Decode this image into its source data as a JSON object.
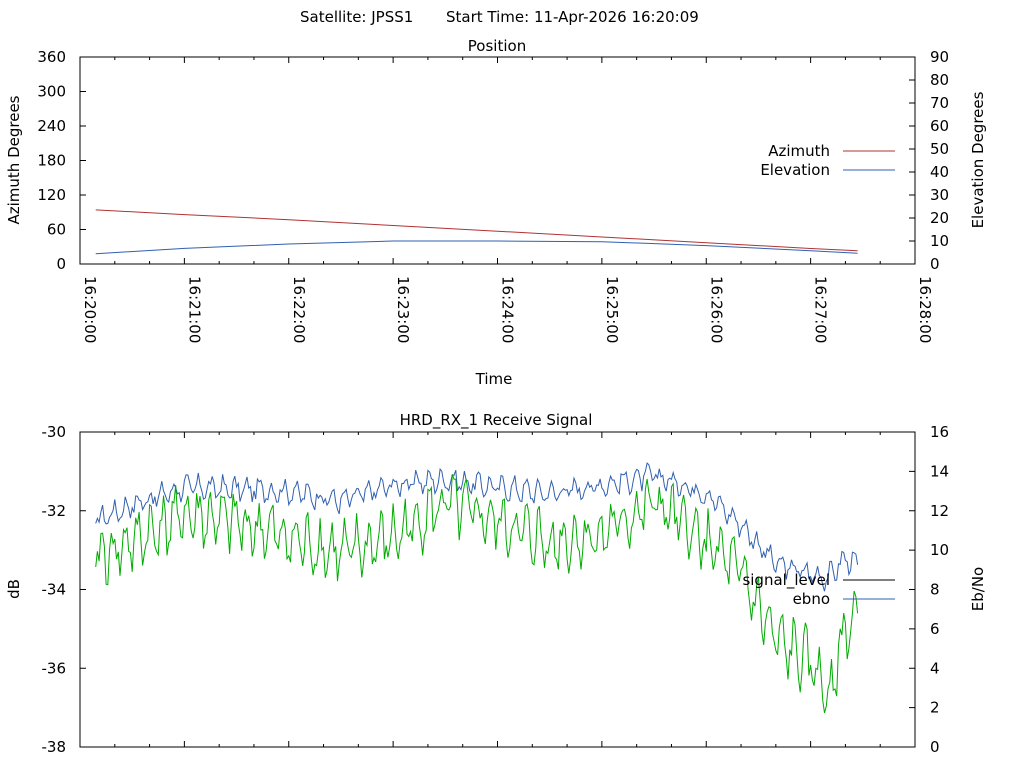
{
  "header": {
    "satellite": "Satellite: JPSS1",
    "start_time": "Start Time: 11-Apr-2026 16:20:09"
  },
  "colors": {
    "azimuth": "#b03232",
    "elevation": "#3060b0",
    "signal_level": "#00aa00",
    "ebno": "#3060b0",
    "signal_level_legend": "#000000"
  },
  "chart_data": [
    {
      "type": "line",
      "title": "Position",
      "xlabel": "Time",
      "ylabel": "Azimuth Degrees",
      "y2label": "Elevation Degrees",
      "x_ticks": [
        "16:20:00",
        "16:21:00",
        "16:22:00",
        "16:23:00",
        "16:24:00",
        "16:25:00",
        "16:26:00",
        "16:27:00",
        "16:28:00"
      ],
      "xlim": [
        "16:20:00",
        "16:28:00"
      ],
      "ylim": [
        0,
        360
      ],
      "y_ticks": [
        "0",
        "60",
        "120",
        "180",
        "240",
        "300",
        "360"
      ],
      "y2lim": [
        0,
        90
      ],
      "y2_ticks": [
        "0",
        "10",
        "20",
        "30",
        "40",
        "50",
        "60",
        "70",
        "80",
        "90"
      ],
      "legend_position": "right",
      "series": [
        {
          "name": "Azimuth",
          "axis": "left",
          "x": [
            "16:20:09",
            "16:21:00",
            "16:22:00",
            "16:23:00",
            "16:24:00",
            "16:25:00",
            "16:26:00",
            "16:27:00",
            "16:27:27"
          ],
          "values": [
            94,
            86,
            77,
            67,
            57,
            47,
            37,
            27,
            23
          ]
        },
        {
          "name": "Elevation",
          "axis": "right",
          "x": [
            "16:20:09",
            "16:21:00",
            "16:22:00",
            "16:23:00",
            "16:24:00",
            "16:25:00",
            "16:26:00",
            "16:27:00",
            "16:27:27"
          ],
          "values": [
            4.5,
            6.8,
            8.7,
            10.0,
            10.0,
            9.7,
            8.0,
            5.8,
            4.7
          ]
        }
      ]
    },
    {
      "type": "line",
      "title": "HRD_RX_1 Receive Signal",
      "ylabel": "dB",
      "y2label": "Eb/No",
      "ylim": [
        -38,
        -30
      ],
      "y_ticks": [
        "-30",
        "-32",
        "-34",
        "-36",
        "-38"
      ],
      "y2lim": [
        0,
        16
      ],
      "y2_ticks": [
        "0",
        "2",
        "4",
        "6",
        "8",
        "10",
        "12",
        "14",
        "16"
      ],
      "xlim": [
        "16:20:00",
        "16:28:00"
      ],
      "legend_position": "right",
      "series": [
        {
          "name": "signal_level",
          "axis": "left",
          "x": [
            "16:20:09",
            "16:20:30",
            "16:21:00",
            "16:21:30",
            "16:22:00",
            "16:22:30",
            "16:23:00",
            "16:23:30",
            "16:24:00",
            "16:24:30",
            "16:25:00",
            "16:25:30",
            "16:26:00",
            "16:26:20",
            "16:26:40",
            "16:27:00",
            "16:27:10",
            "16:27:20",
            "16:27:27"
          ],
          "values": [
            -33.2,
            -32.8,
            -32.1,
            -32.3,
            -32.7,
            -33.1,
            -32.7,
            -31.8,
            -32.3,
            -32.8,
            -32.6,
            -31.8,
            -32.8,
            -33.6,
            -35.3,
            -35.9,
            -36.6,
            -35.0,
            -34.7
          ]
        },
        {
          "name": "ebno",
          "axis": "right",
          "x": [
            "16:20:09",
            "16:20:30",
            "16:21:00",
            "16:21:30",
            "16:22:00",
            "16:22:30",
            "16:23:00",
            "16:23:30",
            "16:24:00",
            "16:24:30",
            "16:25:00",
            "16:25:30",
            "16:26:00",
            "16:26:20",
            "16:26:40",
            "16:27:00",
            "16:27:10",
            "16:27:20",
            "16:27:27"
          ],
          "values": [
            11.5,
            12.3,
            13.2,
            13.1,
            13.0,
            12.5,
            13.3,
            13.6,
            13.2,
            12.9,
            13.3,
            13.8,
            12.9,
            11.3,
            9.3,
            8.8,
            8.6,
            9.6,
            9.2
          ]
        }
      ]
    }
  ]
}
